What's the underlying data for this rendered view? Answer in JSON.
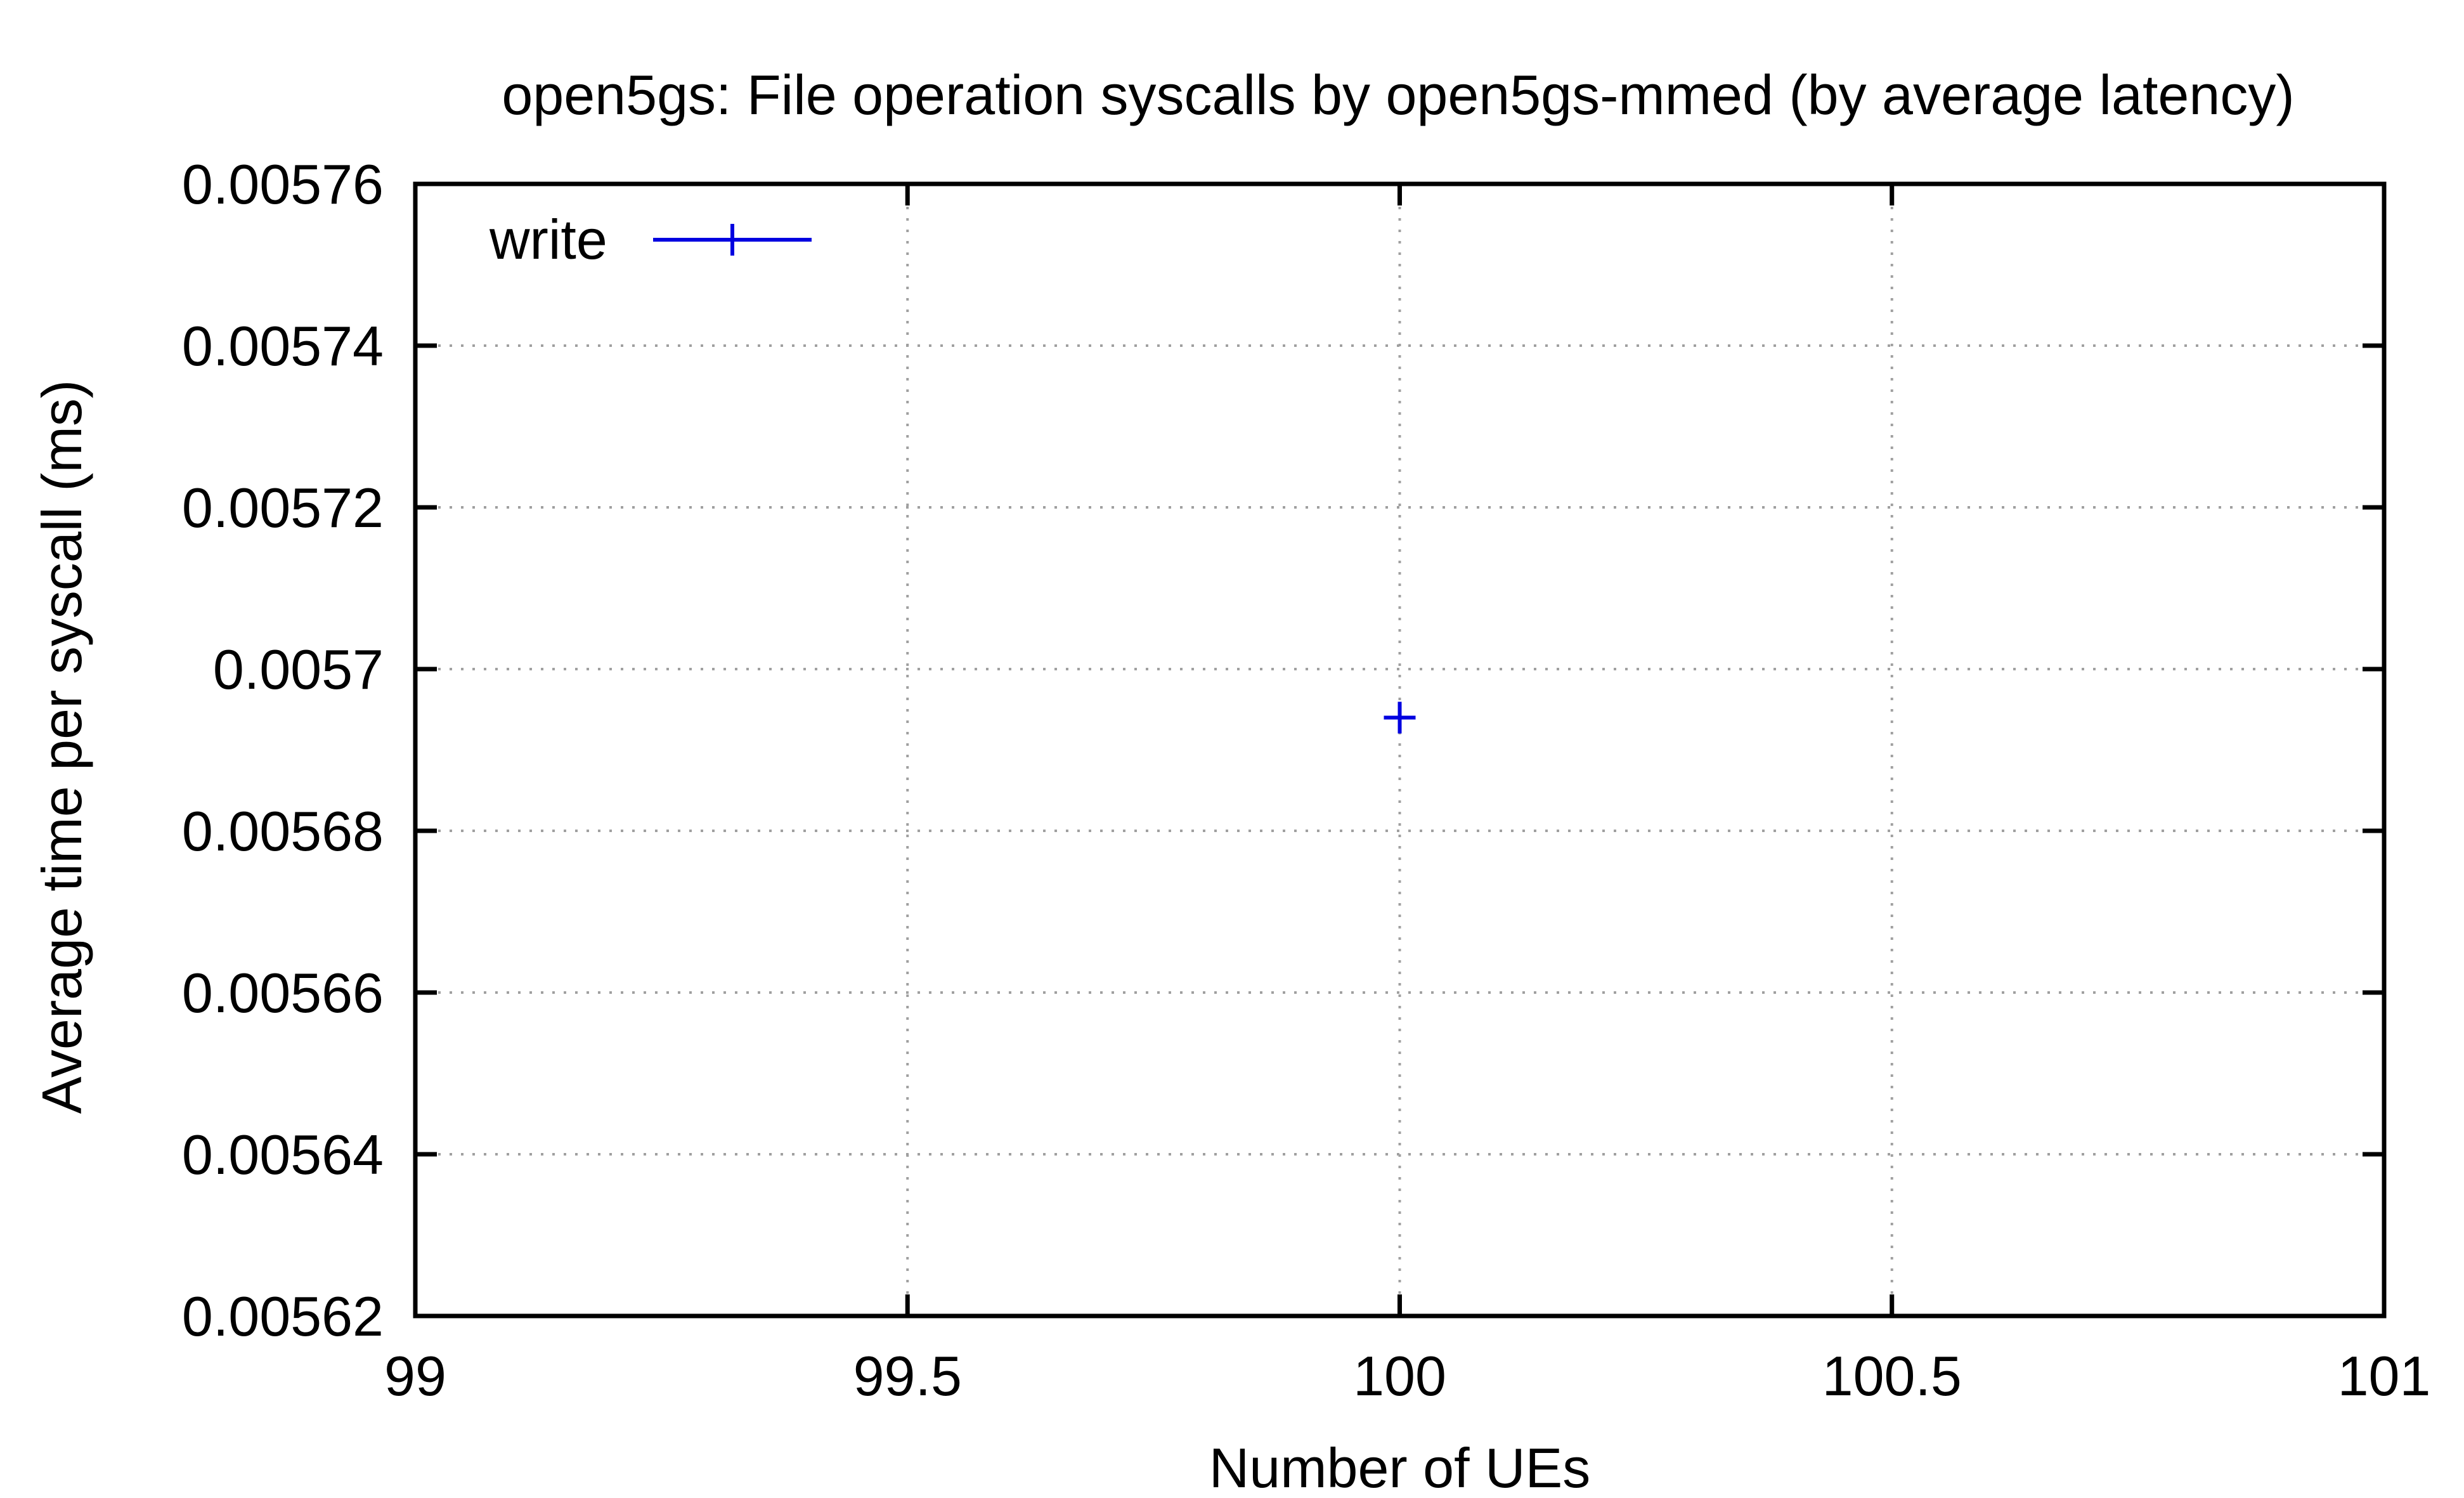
{
  "chart_data": {
    "type": "scatter",
    "title": "open5gs: File operation syscalls by open5gs-mmed (by average latency)",
    "xlabel": "Number of UEs",
    "ylabel": "Average time per syscall (ms)",
    "xlim": [
      99,
      101
    ],
    "ylim": [
      0.00562,
      0.00576
    ],
    "x_ticks": [
      99,
      99.5,
      100,
      100.5,
      101
    ],
    "x_tick_labels": [
      "99",
      "99.5",
      "100",
      "100.5",
      "101"
    ],
    "y_ticks": [
      0.00562,
      0.00564,
      0.00566,
      0.00568,
      0.0057,
      0.00572,
      0.00574,
      0.00576
    ],
    "y_tick_labels": [
      "0.00562",
      "0.00564",
      "0.00566",
      "0.00568",
      "0.0057",
      "0.00572",
      "0.00574",
      "0.00576"
    ],
    "grid": true,
    "legend_position": "top-left",
    "series": [
      {
        "name": "write",
        "color": "#0000e0",
        "marker": "plus",
        "points": [
          {
            "x": 100,
            "y": 0.005694
          }
        ]
      }
    ]
  }
}
